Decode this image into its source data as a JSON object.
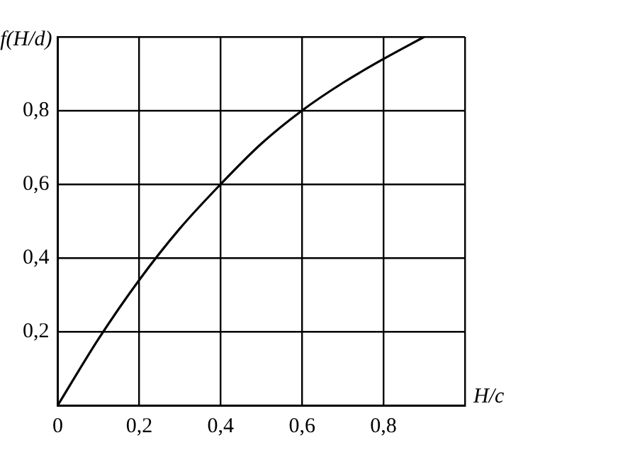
{
  "chart_data": {
    "type": "line",
    "xlabel": "H/c",
    "ylabel": "f(H/d)",
    "x": [
      0,
      0.1,
      0.2,
      0.3,
      0.4,
      0.5,
      0.6,
      0.7,
      0.8,
      0.9
    ],
    "series": [
      {
        "color": "#000000",
        "values": [
          0,
          0.18,
          0.34,
          0.48,
          0.6,
          0.71,
          0.8,
          0.875,
          0.94,
          1.0
        ]
      }
    ],
    "xlim": [
      0,
      1
    ],
    "ylim": [
      0,
      1
    ],
    "xticks": [
      0,
      {
        "value": 0.2,
        "label": "0,2"
      },
      {
        "value": 0.4,
        "label": "0,4"
      },
      {
        "value": 0.6,
        "label": "0,6"
      },
      {
        "value": 0.8,
        "label": "0,8"
      },
      {
        "value": 1,
        "label": null
      }
    ],
    "yticks": [
      {
        "value": 0,
        "label": null
      },
      {
        "value": 0.2,
        "label": "0,2"
      },
      {
        "value": 0.4,
        "label": "0,4"
      },
      {
        "value": 0.6,
        "label": "0,6"
      },
      {
        "value": 0.8,
        "label": "0,8"
      },
      {
        "value": 1,
        "label": null
      }
    ],
    "grid": true,
    "legend": false,
    "marker": "none",
    "line_style": "solid"
  }
}
